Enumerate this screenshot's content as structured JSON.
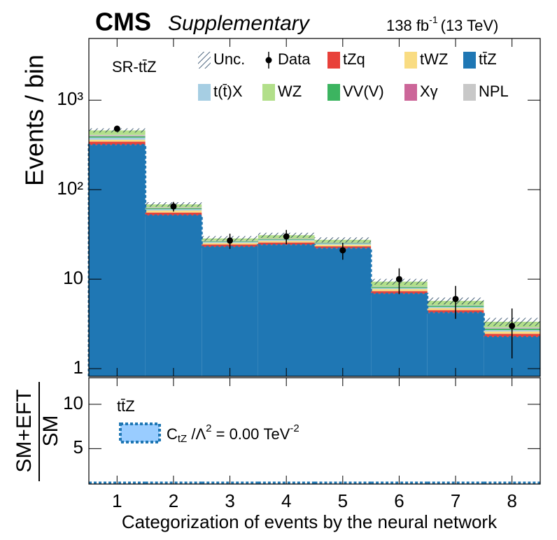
{
  "chart_data": [
    {
      "type": "stacked_bar",
      "title": "CMS",
      "subtitle": "Supplementary",
      "lumi": [
        "138 fb",
        "-1",
        "(13 TeV)"
      ],
      "annotation": "SR-tt̄Z",
      "ylabel": "Events / bin",
      "log_scale": true,
      "x": [
        1,
        2,
        3,
        4,
        5,
        6,
        7,
        8
      ],
      "xlim": [
        0.5,
        8.5
      ],
      "xticks": [
        1,
        2,
        3,
        4,
        5,
        6,
        7,
        8
      ],
      "ylim": [
        0.82,
        4900
      ],
      "yticks": [
        1,
        10,
        {
          "value": 100,
          "label": "10²"
        },
        {
          "value": 1000,
          "label": "10³"
        }
      ],
      "series": [
        {
          "name": "tt̄Z",
          "color": "#1f77b4",
          "values": [
            316,
            51.5,
            22.9,
            24.1,
            22,
            6.85,
            4.2,
            2.25
          ]
        },
        {
          "name": "tZq",
          "color": "#e8413a",
          "values": [
            28,
            4,
            1.5,
            1.6,
            1.3,
            0.5,
            0.3,
            0.2
          ]
        },
        {
          "name": "tWZ",
          "color": "#f9dc82",
          "values": [
            18,
            3,
            1,
            1.1,
            1,
            0.4,
            0.25,
            0.15
          ]
        },
        {
          "name": "t(t̄)X",
          "color": "#a6cee3",
          "values": [
            20,
            2,
            0.7,
            0.8,
            0.7,
            0.2,
            0.15,
            0.1
          ]
        },
        {
          "name": "VV(V)",
          "color": "#3cb460",
          "values": [
            12,
            1.5,
            0.4,
            0.5,
            0.4,
            0.2,
            0.15,
            0.1
          ]
        },
        {
          "name": "Xγ",
          "color": "#cc6699",
          "values": [
            3,
            0.3,
            0.1,
            0.1,
            0.1,
            0.03,
            0.02,
            0.02
          ]
        },
        {
          "name": "NPL",
          "color": "#c8c8c8",
          "values": [
            13,
            1.2,
            0.3,
            0.3,
            0.2,
            0.1,
            0.05,
            0.07
          ]
        },
        {
          "name": "WZ",
          "color": "#b2df8a",
          "values": [
            50,
            5,
            1.6,
            2.5,
            1.8,
            1.1,
            0.6,
            0.45
          ]
        }
      ],
      "uncertainty": {
        "name": "Unc.",
        "values": [
          25,
          4,
          1.8,
          2,
          1.8,
          0.7,
          0.5,
          0.35
        ]
      },
      "data": {
        "name": "Data",
        "color": "#000000",
        "values": [
          480,
          65,
          27,
          30,
          21,
          10,
          6,
          3
        ],
        "errors": [
          22,
          8,
          5.2,
          5.5,
          4.5,
          3.2,
          2.4,
          1.7
        ]
      }
    },
    {
      "type": "line",
      "ylabel": [
        "SM+EFT",
        "SM"
      ],
      "annotation": "tt̄Z",
      "xlabel": "Categorization of events by the neural network",
      "x": [
        1,
        2,
        3,
        4,
        5,
        6,
        7,
        8
      ],
      "xlim": [
        0.5,
        8.5
      ],
      "xticks": [
        1,
        2,
        3,
        4,
        5,
        6,
        7,
        8
      ],
      "ylim": [
        1,
        13
      ],
      "yticks": [
        5,
        10
      ],
      "series": [
        {
          "name": [
            "C",
            "tZ",
            " /Λ",
            "2",
            " = 0.00 TeV",
            "-2"
          ],
          "color": "#1f77b4",
          "fill": "#99ccff",
          "values": [
            1,
            1,
            1,
            1,
            1,
            1,
            1,
            1
          ]
        }
      ]
    }
  ]
}
